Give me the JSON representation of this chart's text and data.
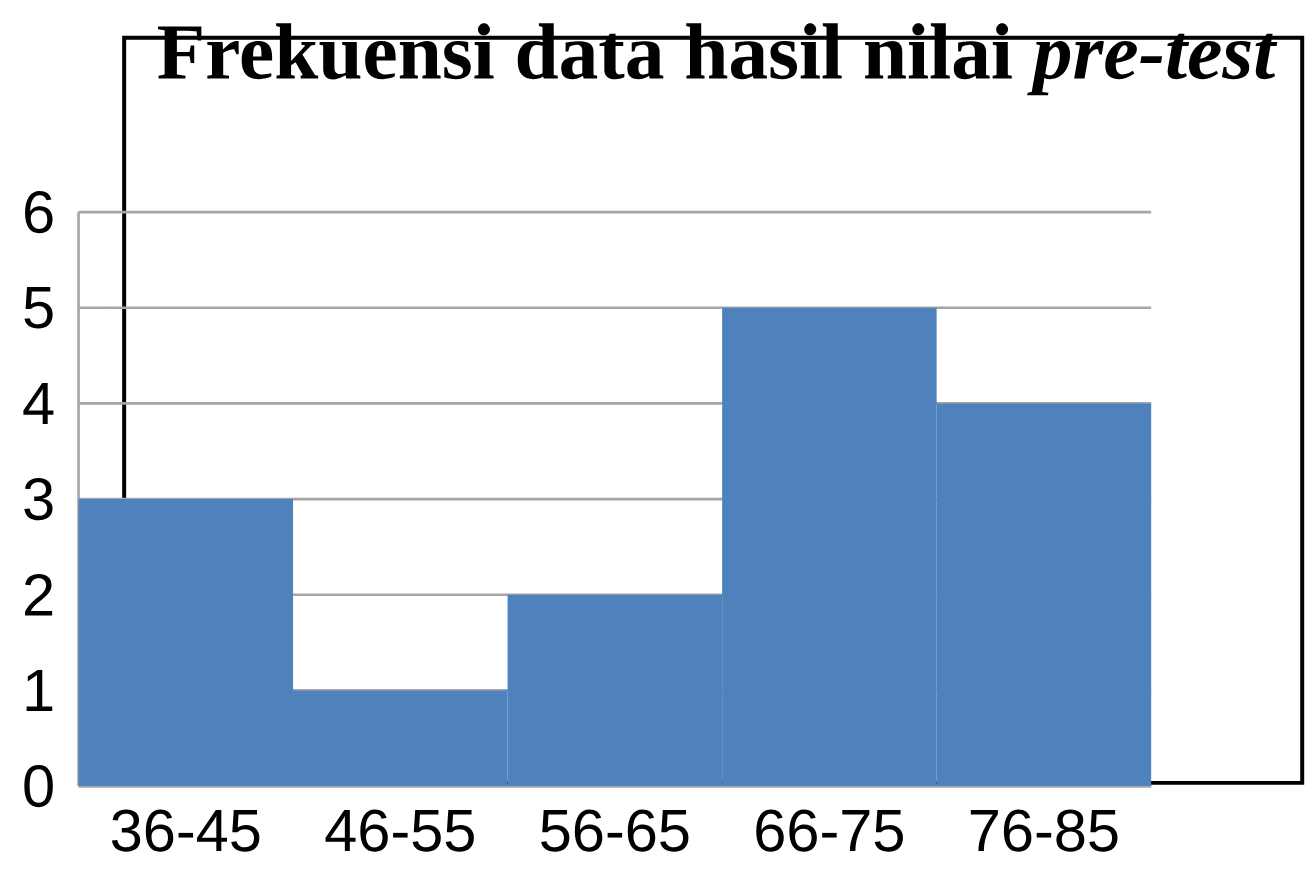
{
  "chart_data": {
    "type": "bar",
    "title": "Frekuensi data hasil nilai *pre-test*",
    "categories": [
      "36-45",
      "46-55",
      "56-65",
      "66-75",
      "76-85"
    ],
    "values": [
      3,
      1,
      2,
      5,
      4
    ],
    "color": "#4f81bd",
    "ylim": [
      0,
      6
    ],
    "yticks": [
      0,
      1,
      2,
      3,
      4,
      5,
      6
    ],
    "grid": "y"
  }
}
